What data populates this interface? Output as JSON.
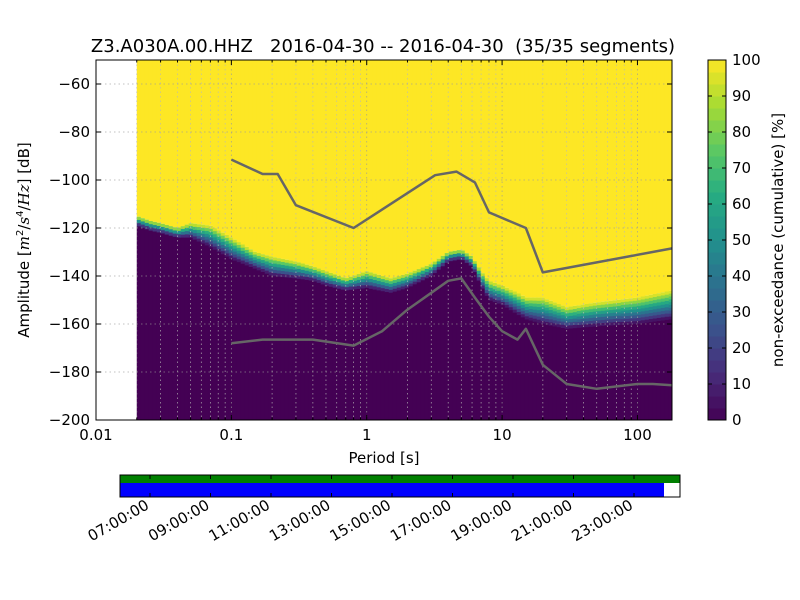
{
  "title": "Z3.A030A.00.HHZ   2016-04-30 -- 2016-04-30  (35/35 segments)",
  "xlabel": "Period [s]",
  "ylabel": {
    "prefix": "Amplitude [",
    "m": "m",
    "two": "2",
    "slash1": "/",
    "s": "s",
    "four": "4",
    "slash2": "/",
    "hz": "Hz",
    "suffix": "] [dB]"
  },
  "colorbar": {
    "label": "non-exceedance (cumulative) [%]",
    "ticks": [
      "0",
      "10",
      "20",
      "30",
      "40",
      "50",
      "60",
      "70",
      "80",
      "90",
      "100"
    ],
    "range": [
      0,
      100
    ]
  },
  "timeline": {
    "ticks": [
      "07:00:00",
      "09:00:00",
      "11:00:00",
      "13:00:00",
      "15:00:00",
      "17:00:00",
      "19:00:00",
      "21:00:00",
      "23:00:00"
    ],
    "colors": {
      "data": "#0000ff",
      "gaps_ok": "#008000"
    }
  },
  "chart_data": {
    "type": "heatmap",
    "x_scale": "log",
    "xlim": [
      0.01,
      180
    ],
    "ylim": [
      -200,
      -50
    ],
    "x_ticks": [
      {
        "value": 0.01,
        "label": "0.01"
      },
      {
        "value": 0.1,
        "label": "0.1"
      },
      {
        "value": 1,
        "label": "1"
      },
      {
        "value": 10,
        "label": "10"
      },
      {
        "value": 100,
        "label": "100"
      }
    ],
    "y_ticks": [
      {
        "value": -60,
        "label": "−60"
      },
      {
        "value": -80,
        "label": "−80"
      },
      {
        "value": -100,
        "label": "−100"
      },
      {
        "value": -120,
        "label": "−120"
      },
      {
        "value": -140,
        "label": "−140"
      },
      {
        "value": -160,
        "label": "−160"
      },
      {
        "value": -180,
        "label": "−180"
      },
      {
        "value": -200,
        "label": "−200"
      }
    ],
    "grid": true,
    "data_start_period": 0.02,
    "psd_band": {
      "period": [
        0.02,
        0.025,
        0.03,
        0.04,
        0.05,
        0.07,
        0.1,
        0.15,
        0.2,
        0.3,
        0.4,
        0.5,
        0.7,
        1.0,
        1.5,
        2,
        3,
        4,
        5,
        6,
        7,
        8,
        10,
        13,
        15,
        20,
        30,
        50,
        100,
        180
      ],
      "lower_db": [
        -119,
        -121,
        -122,
        -124,
        -124,
        -128,
        -133,
        -137,
        -140,
        -141,
        -142,
        -144,
        -146,
        -145,
        -147,
        -145,
        -140,
        -134,
        -133,
        -136,
        -144,
        -150,
        -152,
        -156,
        -158,
        -160,
        -162,
        -161,
        -160,
        -158
      ],
      "upper_db": [
        -115,
        -117,
        -118,
        -120,
        -118,
        -119,
        -124,
        -130,
        -132,
        -134,
        -136,
        -138,
        -141,
        -138,
        -141,
        -139,
        -135,
        -130,
        -129,
        -132,
        -138,
        -142,
        -144,
        -147,
        -149,
        -149,
        -153,
        -151,
        -149,
        -146
      ]
    },
    "series": [
      {
        "name": "",
        "x": [
          0.1,
          0.17,
          0.22,
          0.3,
          0.8,
          3.2,
          4.6,
          6.3,
          8,
          15,
          20,
          180
        ],
        "y": [
          -91.5,
          -97.5,
          -97.5,
          -110.5,
          -120,
          -98,
          -96.5,
          -101,
          -113.5,
          -120,
          -138.5,
          -128.5
        ]
      },
      {
        "name": "",
        "x": [
          0.1,
          0.17,
          0.4,
          0.8,
          1.3,
          2,
          3,
          4,
          5,
          6.3,
          8,
          10,
          13,
          15,
          20,
          30,
          50,
          100,
          130,
          180
        ],
        "y": [
          -168,
          -166.5,
          -166.5,
          -169,
          -163,
          -154,
          -147,
          -142,
          -141,
          -149,
          -157,
          -163,
          -166.5,
          -162,
          -177,
          -185,
          -187,
          -185,
          -185,
          -185.5
        ]
      }
    ]
  }
}
